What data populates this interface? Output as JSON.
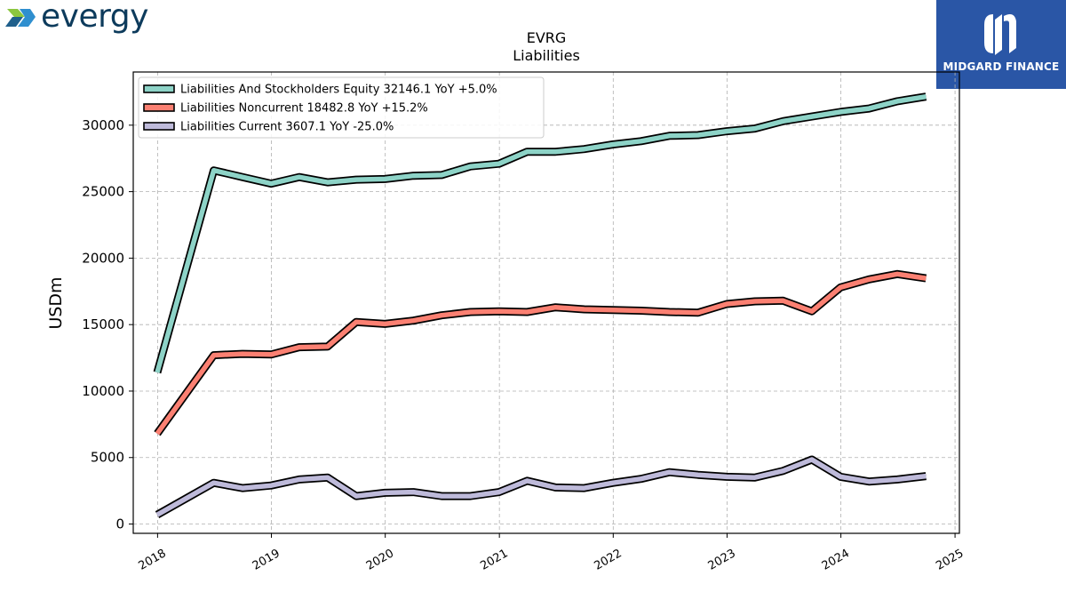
{
  "logos": {
    "evergy": "evergy",
    "midgard": "MIDGARD FINANCE"
  },
  "chart_data": {
    "type": "line",
    "title": "EVRG",
    "subtitle": "Liabilities",
    "xlabel": "",
    "ylabel": "USDm",
    "xlim": [
      "2017-10-15",
      "2025-01-15"
    ],
    "ylim": [
      -700,
      34000
    ],
    "x_ticks": [
      "2018",
      "2019",
      "2020",
      "2021",
      "2022",
      "2023",
      "2024",
      "2025"
    ],
    "y_ticks": [
      0,
      5000,
      10000,
      15000,
      20000,
      25000,
      30000
    ],
    "grid": true,
    "legend_position": "top-left",
    "x": [
      "2017-12-31",
      "2018-06-30",
      "2018-09-30",
      "2018-12-31",
      "2019-03-31",
      "2019-06-30",
      "2019-09-30",
      "2019-12-31",
      "2020-03-31",
      "2020-06-30",
      "2020-09-30",
      "2020-12-31",
      "2021-03-31",
      "2021-06-30",
      "2021-09-30",
      "2021-12-31",
      "2022-03-31",
      "2022-06-30",
      "2022-09-30",
      "2022-12-31",
      "2023-03-31",
      "2023-06-30",
      "2023-09-30",
      "2023-12-31",
      "2024-03-31",
      "2024-06-30",
      "2024-09-30"
    ],
    "series": [
      {
        "name": "Liabilities And Stockholders Equity",
        "legend_label": "Liabilities And Stockholders Equity  32146.1 YoY +5.0%",
        "color": "#8dd3c7",
        "values": [
          11400,
          26600,
          26100,
          25600,
          26100,
          25700,
          25900,
          25950,
          26200,
          26250,
          26900,
          27100,
          28000,
          28000,
          28200,
          28550,
          28800,
          29200,
          29250,
          29550,
          29750,
          30300,
          30650,
          31000,
          31250,
          31800,
          32146.1
        ]
      },
      {
        "name": "Liabilities Noncurrent",
        "legend_label": "Liabilities Noncurrent  18482.8 YoY +15.2%",
        "color": "#fb8072",
        "values": [
          6800,
          12700,
          12800,
          12750,
          13300,
          13350,
          15200,
          15050,
          15300,
          15700,
          15950,
          16000,
          15950,
          16300,
          16150,
          16100,
          16050,
          15950,
          15900,
          16550,
          16750,
          16800,
          16000,
          17800,
          18400,
          18800,
          18482.8
        ]
      },
      {
        "name": "Liabilities Current",
        "legend_label": "Liabilities Current  3607.1 YoY -25.0%",
        "color": "#bebada",
        "values": [
          700,
          3100,
          2700,
          2900,
          3350,
          3500,
          2100,
          2350,
          2400,
          2100,
          2100,
          2400,
          3250,
          2750,
          2700,
          3100,
          3400,
          3900,
          3700,
          3550,
          3500,
          4000,
          4850,
          3550,
          3200,
          3350,
          3607.1
        ]
      }
    ]
  }
}
